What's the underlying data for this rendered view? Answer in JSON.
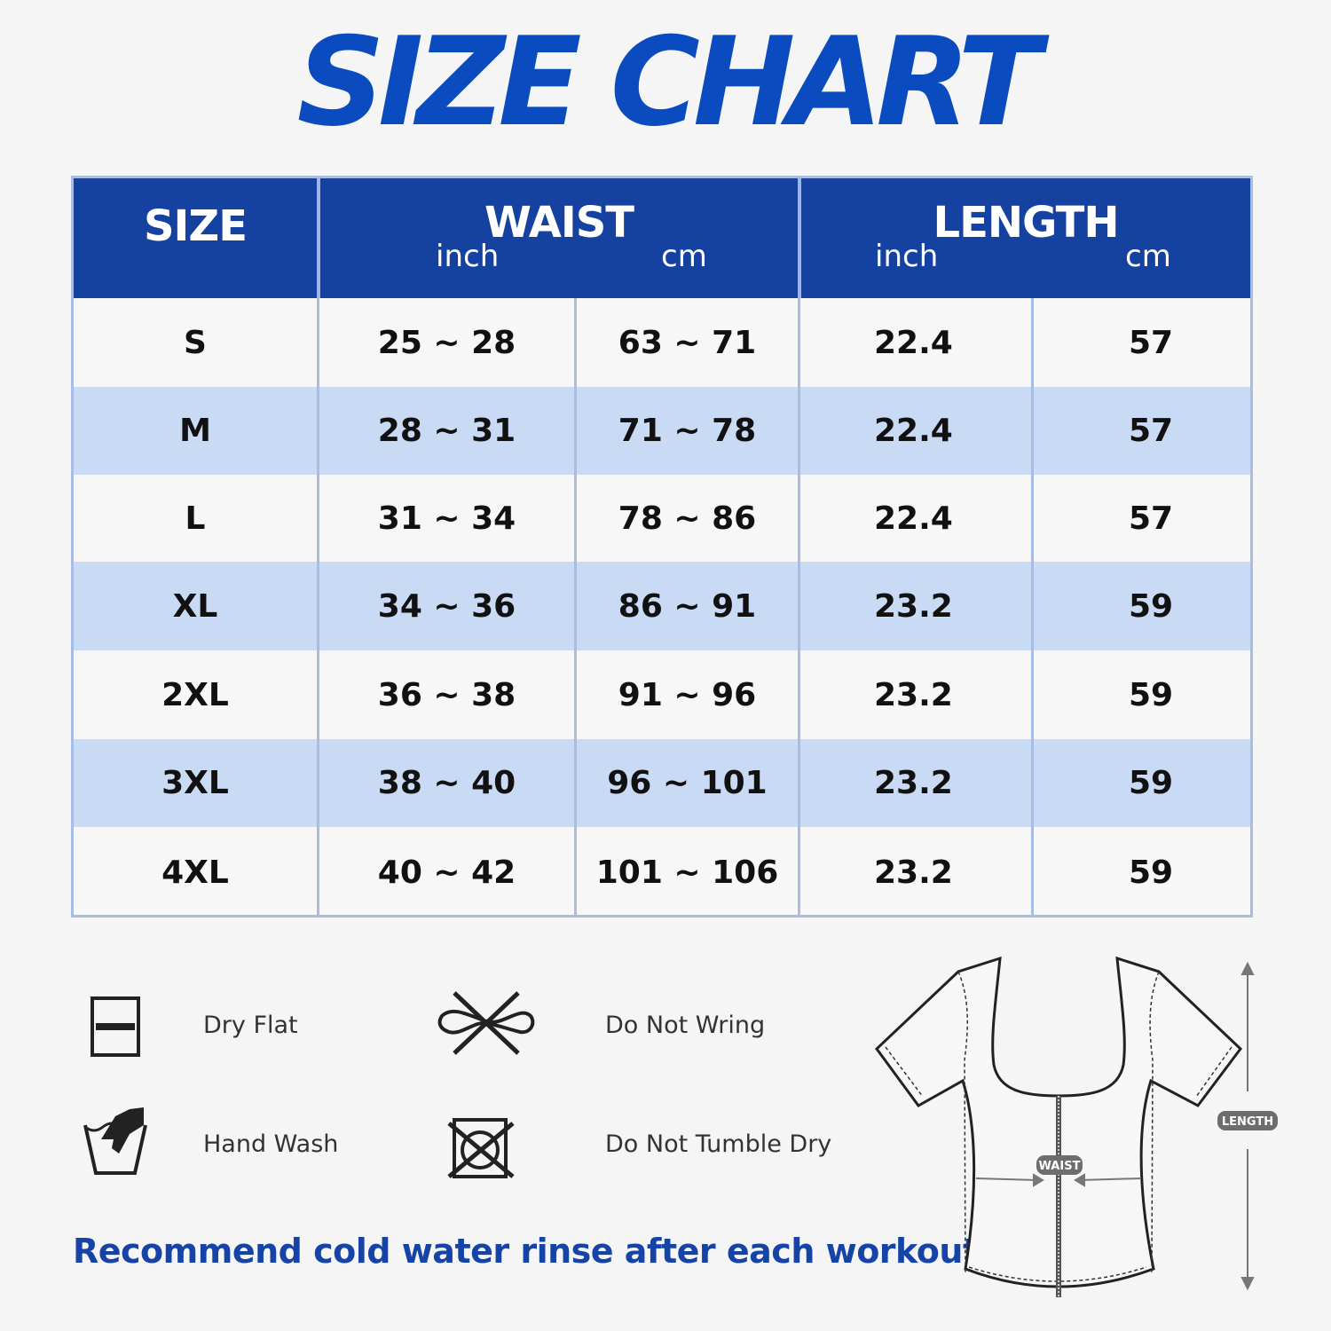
{
  "title": "SIZE CHART",
  "table": {
    "headers": {
      "size": "SIZE",
      "waist": {
        "label": "WAIST",
        "units": [
          "inch",
          "cm"
        ]
      },
      "length": {
        "label": "LENGTH",
        "units": [
          "inch",
          "cm"
        ]
      }
    },
    "rows": [
      {
        "size": "S",
        "waist_inch": "25 ~ 28",
        "waist_cm": "63 ~ 71",
        "length_inch": "22.4",
        "length_cm": "57"
      },
      {
        "size": "M",
        "waist_inch": "28 ~ 31",
        "waist_cm": "71 ~ 78",
        "length_inch": "22.4",
        "length_cm": "57"
      },
      {
        "size": "L",
        "waist_inch": "31 ~ 34",
        "waist_cm": "78 ~ 86",
        "length_inch": "22.4",
        "length_cm": "57"
      },
      {
        "size": "XL",
        "waist_inch": "34 ~ 36",
        "waist_cm": "86 ~ 91",
        "length_inch": "23.2",
        "length_cm": "59"
      },
      {
        "size": "2XL",
        "waist_inch": "36 ~ 38",
        "waist_cm": "91 ~ 96",
        "length_inch": "23.2",
        "length_cm": "59"
      },
      {
        "size": "3XL",
        "waist_inch": "38 ~ 40",
        "waist_cm": "96 ~ 101",
        "length_inch": "23.2",
        "length_cm": "59"
      },
      {
        "size": "4XL",
        "waist_inch": "40 ~ 42",
        "waist_cm": "101 ~ 106",
        "length_inch": "23.2",
        "length_cm": "59"
      }
    ]
  },
  "care": [
    {
      "icon": "dry-flat-icon",
      "label": "Dry Flat"
    },
    {
      "icon": "do-not-wring-icon",
      "label": "Do Not Wring"
    },
    {
      "icon": "hand-wash-icon",
      "label": "Hand Wash"
    },
    {
      "icon": "do-not-tumble-dry-icon",
      "label": "Do Not Tumble Dry"
    }
  ],
  "note": "Recommend cold water rinse after each workout.",
  "diagram": {
    "waist_label": "WAIST",
    "length_label": "LENGTH"
  },
  "colors": {
    "brand_blue": "#1541a0",
    "title_blue": "#0a4bc0",
    "row_alt": "#c9daf5",
    "border": "#a9bde3"
  }
}
